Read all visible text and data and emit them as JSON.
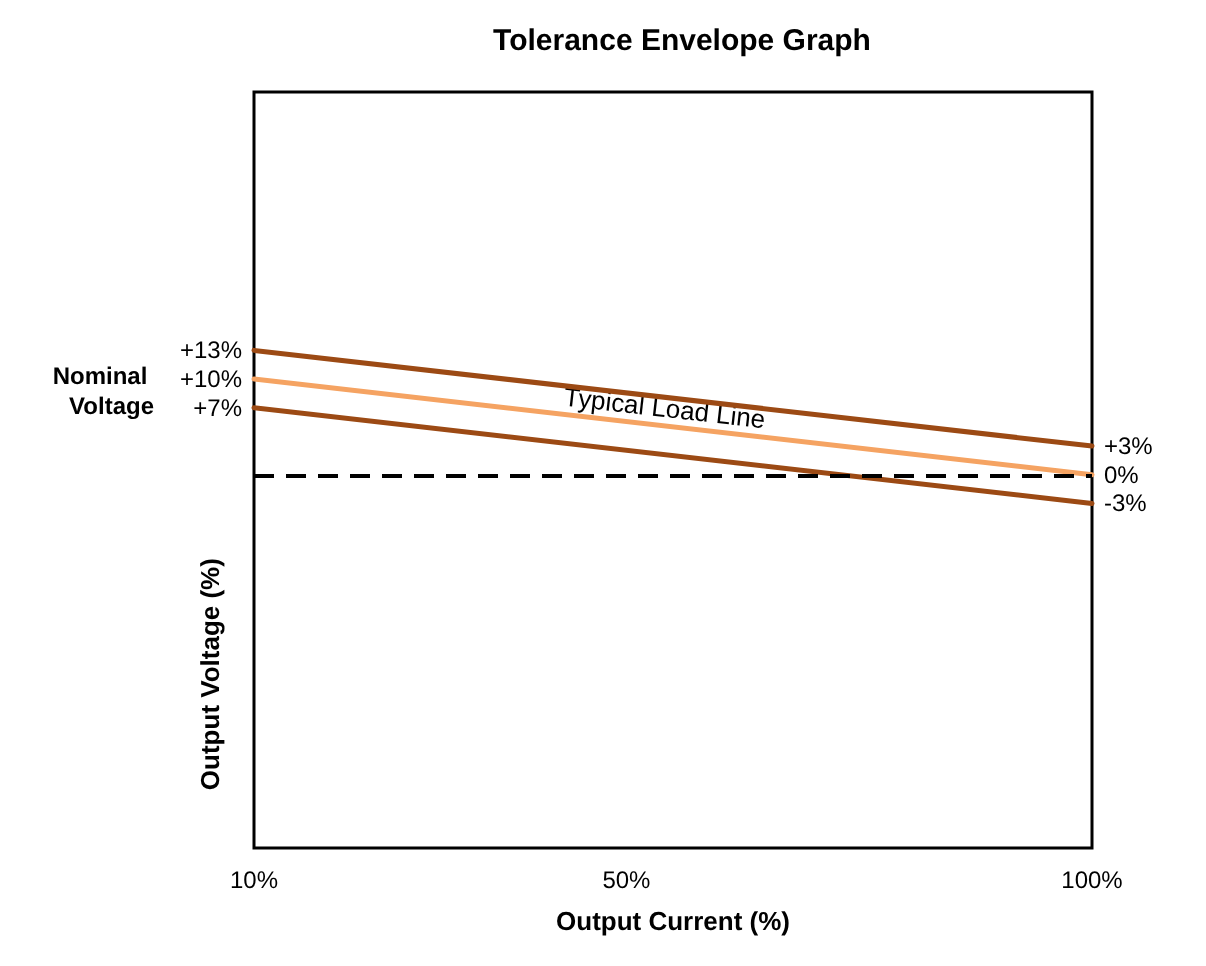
{
  "chart_data": {
    "type": "line",
    "title": "Tolerance Envelope Graph",
    "xlabel": "Output Current (%)",
    "ylabel": "Output Voltage (%)",
    "x": [
      10,
      100
    ],
    "series": [
      {
        "color": "#9c4a14",
        "values": [
          13,
          3
        ],
        "value_labels": [
          "+13%",
          "+3%"
        ]
      },
      {
        "color": "#f5a362",
        "values": [
          10,
          0
        ],
        "value_labels": [
          "+10%",
          "0%"
        ]
      },
      {
        "color": "#9c4a14",
        "values": [
          7,
          -3
        ],
        "value_labels": [
          "+7%",
          "-3%"
        ]
      }
    ],
    "xlim": [
      10,
      100
    ],
    "xticks": [
      {
        "value": 10,
        "label": "10%"
      },
      {
        "value": 50,
        "label": "50%"
      },
      {
        "value": 100,
        "label": "100%"
      }
    ],
    "ylim": [
      -39,
      40
    ],
    "tick_labels": "x",
    "marker": "none",
    "ref_lines": [
      {
        "axis": "y",
        "value": 0,
        "color": "#000000",
        "line_style": "dashed"
      }
    ],
    "annotations": [
      "Typical Load Line",
      "Nominal Voltage"
    ]
  }
}
